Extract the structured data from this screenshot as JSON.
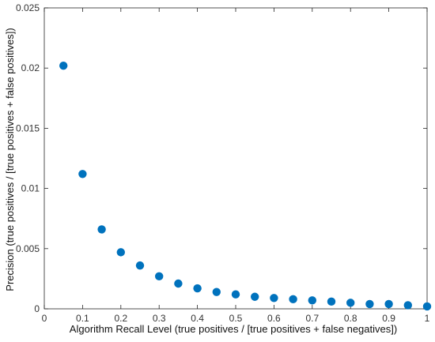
{
  "chart_data": {
    "type": "scatter",
    "xlabel": "Algorithm Recall Level (true positives / [true positives + false negatives])",
    "ylabel": "Precision (true positives / [true positives + false positives])",
    "xlim": [
      0,
      1
    ],
    "ylim": [
      0,
      0.025
    ],
    "xticks": [
      0,
      0.1,
      0.2,
      0.3,
      0.4,
      0.5,
      0.6,
      0.7,
      0.8,
      0.9,
      1
    ],
    "xtick_labels": [
      "0",
      "0.1",
      "0.2",
      "0.3",
      "0.4",
      "0.5",
      "0.6",
      "0.7",
      "0.8",
      "0.9",
      "1"
    ],
    "yticks": [
      0,
      0.005,
      0.01,
      0.015,
      0.02,
      0.025
    ],
    "ytick_labels": [
      "0",
      "0.005",
      "0.01",
      "0.015",
      "0.02",
      "0.025"
    ],
    "grid": false,
    "marker_color": "#0072BD",
    "series": [
      {
        "x": [
          0.05,
          0.1,
          0.15,
          0.2,
          0.25,
          0.3,
          0.35,
          0.4,
          0.45,
          0.5,
          0.55,
          0.6,
          0.65,
          0.7,
          0.75,
          0.8,
          0.85,
          0.9,
          0.95,
          1.0
        ],
        "y": [
          0.0202,
          0.0112,
          0.0066,
          0.0047,
          0.0036,
          0.0027,
          0.0021,
          0.0017,
          0.0014,
          0.0012,
          0.001,
          0.0009,
          0.0008,
          0.0007,
          0.0006,
          0.0005,
          0.0004,
          0.0004,
          0.0003,
          0.0002
        ]
      }
    ]
  }
}
